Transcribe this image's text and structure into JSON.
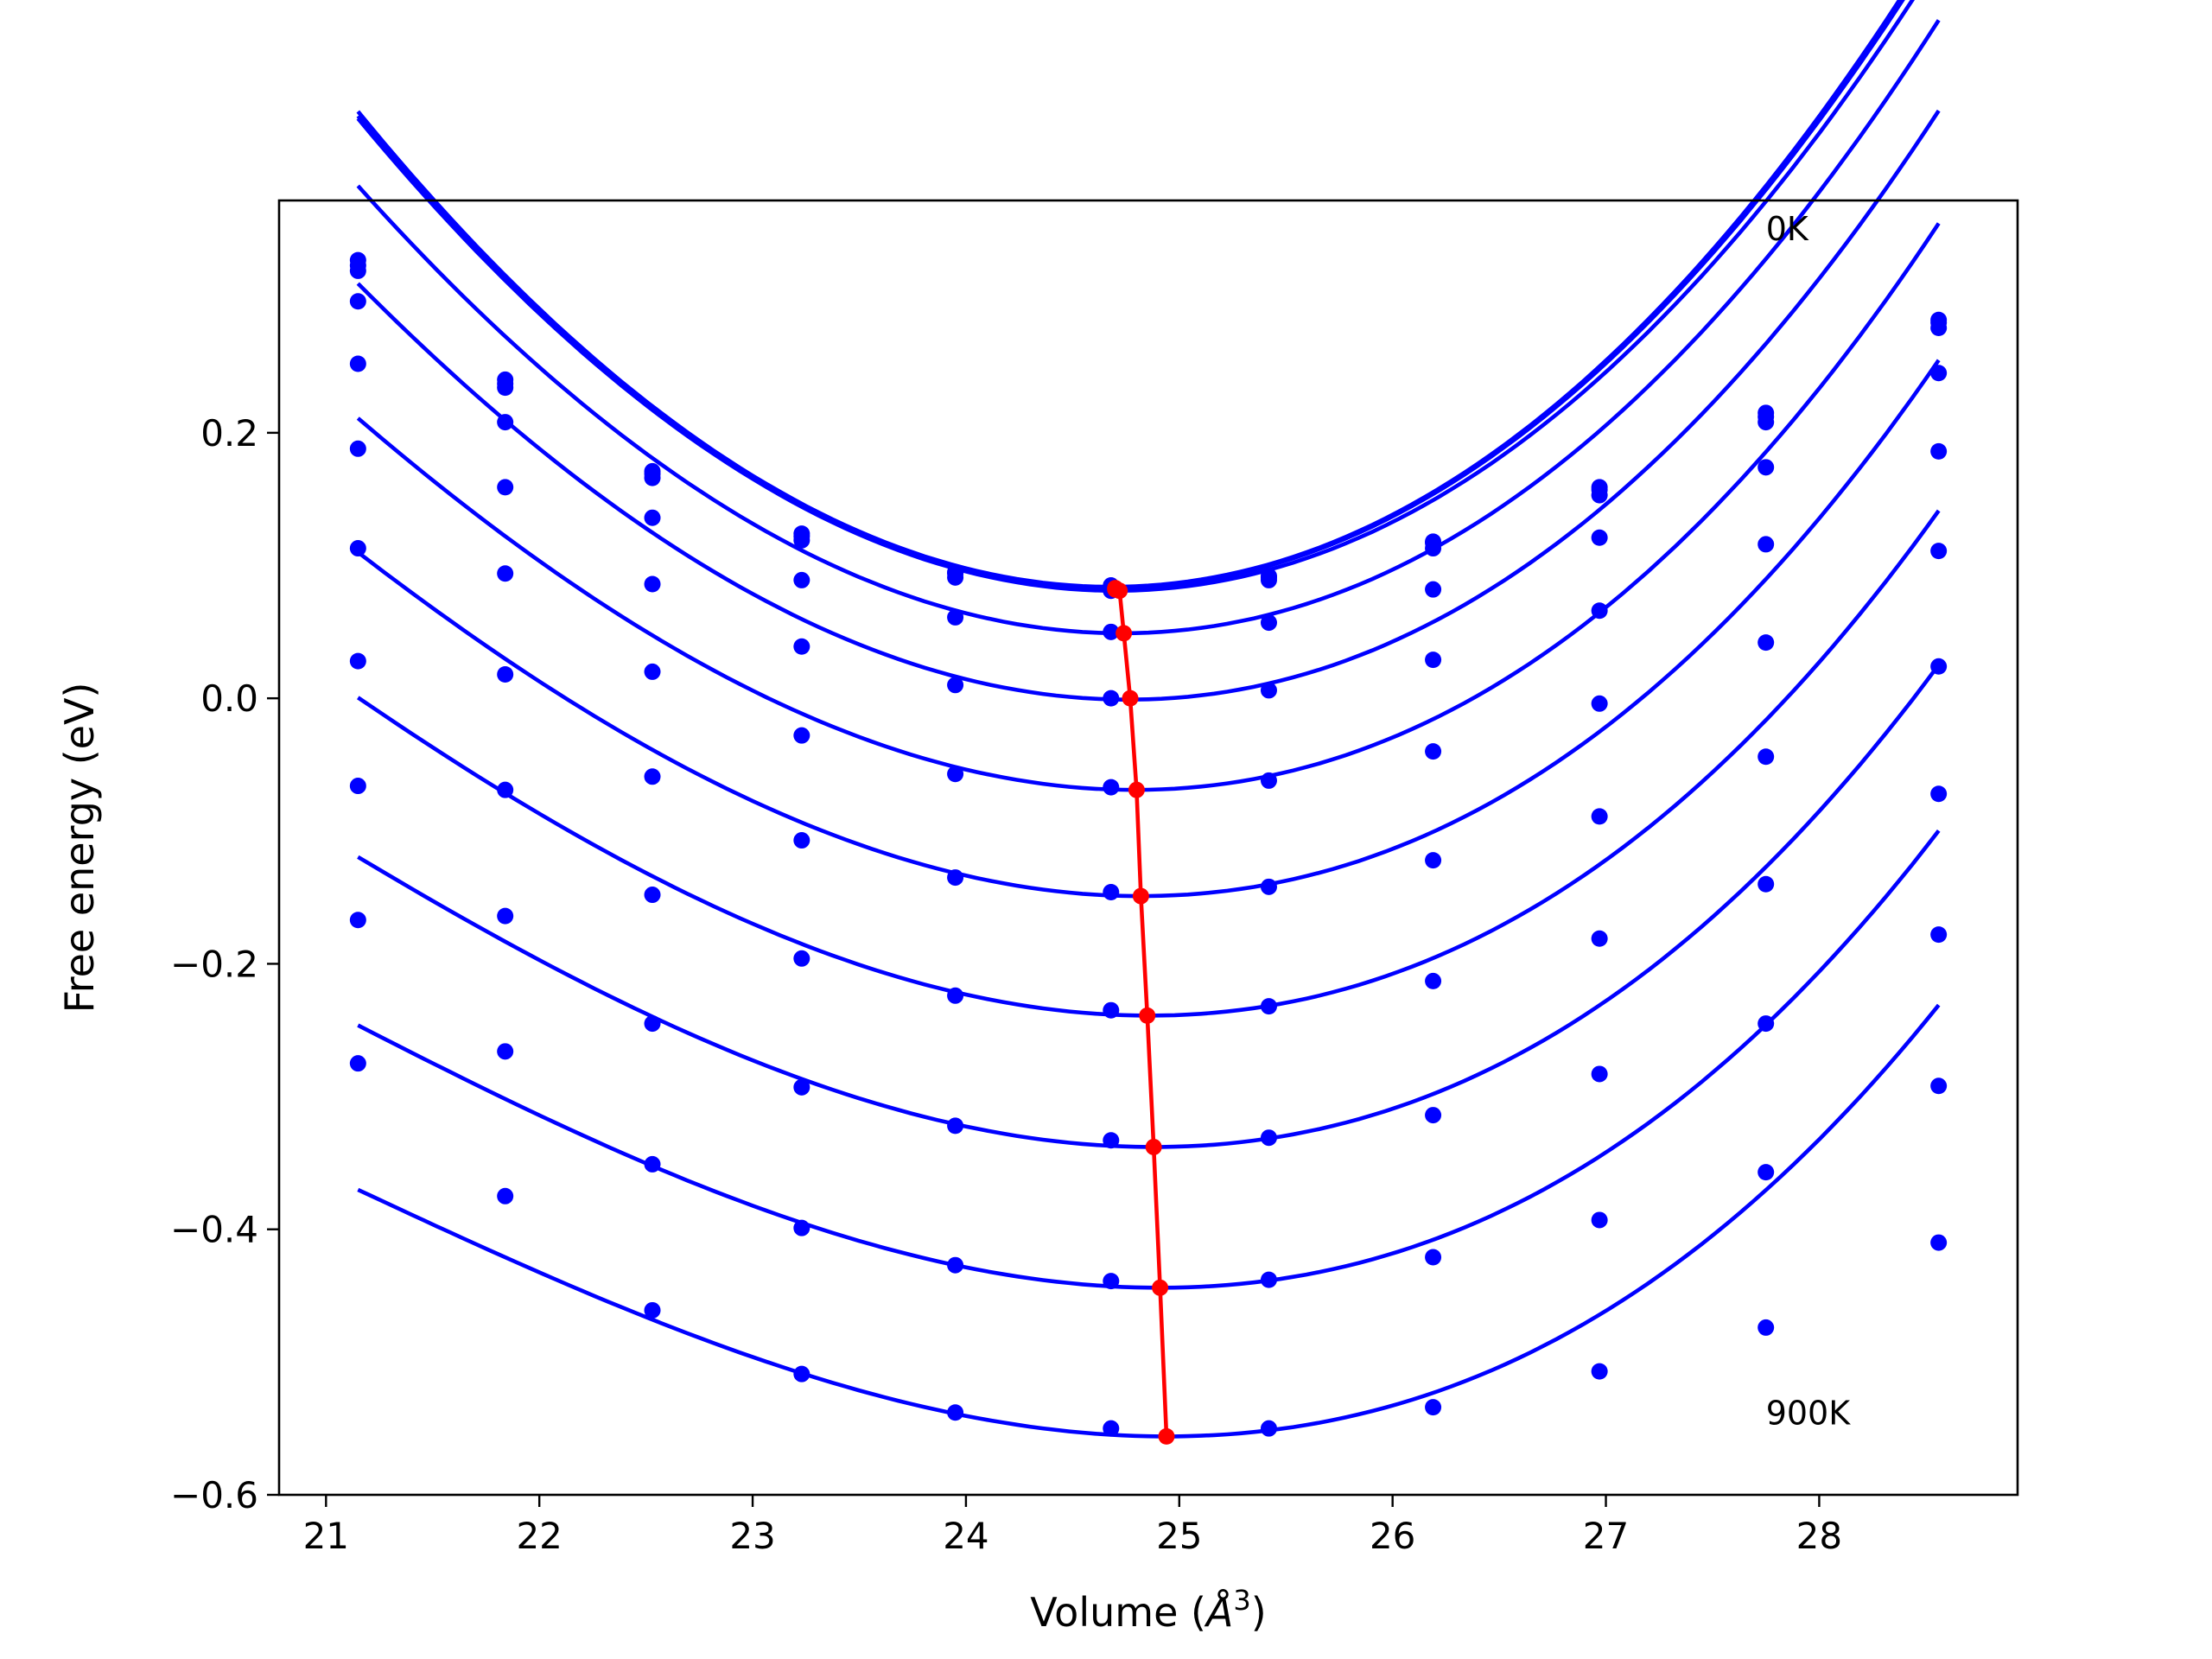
{
  "chart_data": {
    "type": "line",
    "xlabel_prefix": "Volume (",
    "xlabel_unit": "Å",
    "xlabel_exp": "3",
    "xlabel_suffix": ")",
    "ylabel": "Free energy (eV)",
    "xlim": [
      20.78,
      28.93
    ],
    "ylim": [
      -0.6,
      0.375
    ],
    "x_ticks": [
      21,
      22,
      23,
      24,
      25,
      26,
      27,
      28
    ],
    "y_ticks": [
      -0.6,
      -0.4,
      -0.2,
      0.0,
      0.2
    ],
    "y_tick_labels": [
      "−0.6",
      "−0.4",
      "−0.2",
      "0.0",
      "0.2"
    ],
    "grid": false,
    "annotations": [
      {
        "text": "0K",
        "x": 27.75,
        "y": 0.345
      },
      {
        "text": "900K",
        "x": 27.75,
        "y": -0.547
      }
    ],
    "volumes": [
      21.15,
      21.84,
      22.53,
      23.23,
      23.95,
      24.68,
      25.42,
      26.19,
      26.97,
      27.75,
      28.56
    ],
    "curve_color": "#0000ff",
    "minimum_color": "#ff0000",
    "series": [
      {
        "values": [
          0.33,
          0.24,
          0.171,
          0.124,
          0.095,
          0.085,
          0.092,
          0.118,
          0.159,
          0.215,
          0.285
        ],
        "fit": {
          "x0": 24.68,
          "emin": 0.084,
          "a": 0.0305,
          "b": 0.0005
        }
      },
      {
        "values": [
          0.326,
          0.237,
          0.169,
          0.122,
          0.094,
          0.084,
          0.091,
          0.117,
          0.157,
          0.212,
          0.283
        ],
        "fit": {
          "x0": 24.68,
          "emin": 0.083,
          "a": 0.0303,
          "b": 0.0005
        }
      },
      {
        "values": [
          0.322,
          0.234,
          0.166,
          0.119,
          0.091,
          0.081,
          0.089,
          0.113,
          0.153,
          0.208,
          0.279
        ],
        "fit": {
          "x0": 24.7,
          "emin": 0.081,
          "a": 0.03,
          "b": 0.0005
        }
      },
      {
        "values": [
          0.299,
          0.208,
          0.136,
          0.089,
          0.061,
          0.05,
          0.057,
          0.082,
          0.121,
          0.174,
          0.245
        ],
        "fit": {
          "x0": 24.73,
          "emin": 0.049,
          "a": 0.0288,
          "b": 0.0007
        }
      },
      {
        "values": [
          0.252,
          0.159,
          0.086,
          0.039,
          0.01,
          0.0,
          0.006,
          0.029,
          0.066,
          0.116,
          0.186
        ],
        "fit": {
          "x0": 24.76,
          "emin": -0.001,
          "a": 0.0273,
          "b": 0.0009
        }
      },
      {
        "values": [
          0.188,
          0.094,
          0.02,
          -0.028,
          -0.057,
          -0.067,
          -0.062,
          -0.04,
          -0.004,
          0.042,
          0.111
        ],
        "fit": {
          "x0": 24.79,
          "emin": -0.069,
          "a": 0.0255,
          "b": 0.0012
        }
      },
      {
        "values": [
          0.113,
          0.018,
          -0.059,
          -0.107,
          -0.135,
          -0.146,
          -0.142,
          -0.122,
          -0.089,
          -0.044,
          0.024
        ],
        "fit": {
          "x0": 24.82,
          "emin": -0.149,
          "a": 0.024,
          "b": 0.0013
        }
      },
      {
        "values": [
          0.028,
          -0.069,
          -0.148,
          -0.196,
          -0.224,
          -0.235,
          -0.232,
          -0.213,
          -0.181,
          -0.14,
          -0.072
        ],
        "fit": {
          "x0": 24.86,
          "emin": -0.239,
          "a": 0.0226,
          "b": 0.0014
        }
      },
      {
        "values": [
          -0.066,
          -0.164,
          -0.245,
          -0.293,
          -0.322,
          -0.333,
          -0.331,
          -0.314,
          -0.283,
          -0.245,
          -0.178
        ],
        "fit": {
          "x0": 24.88,
          "emin": -0.338,
          "a": 0.0213,
          "b": 0.0015
        }
      },
      {
        "values": [
          -0.167,
          -0.266,
          -0.351,
          -0.399,
          -0.427,
          -0.439,
          -0.438,
          -0.421,
          -0.393,
          -0.357,
          -0.292
        ],
        "fit": {
          "x0": 24.91,
          "emin": -0.444,
          "a": 0.02,
          "b": 0.0016
        }
      },
      {
        "values": [
          -0.275,
          -0.375,
          -0.461,
          -0.509,
          -0.538,
          -0.55,
          -0.55,
          -0.534,
          -0.507,
          -0.474,
          -0.41
        ],
        "fit": {
          "x0": 24.94,
          "emin": -0.556,
          "a": 0.019,
          "b": 0.0016
        }
      }
    ],
    "minimum_path": {
      "x": [
        24.7,
        24.7,
        24.72,
        24.74,
        24.77,
        24.8,
        24.82,
        24.85,
        24.88,
        24.91,
        24.94
      ],
      "y": [
        0.082,
        0.083,
        0.081,
        0.049,
        0.0,
        -0.069,
        -0.149,
        -0.239,
        -0.338,
        -0.444,
        -0.556
      ]
    }
  }
}
